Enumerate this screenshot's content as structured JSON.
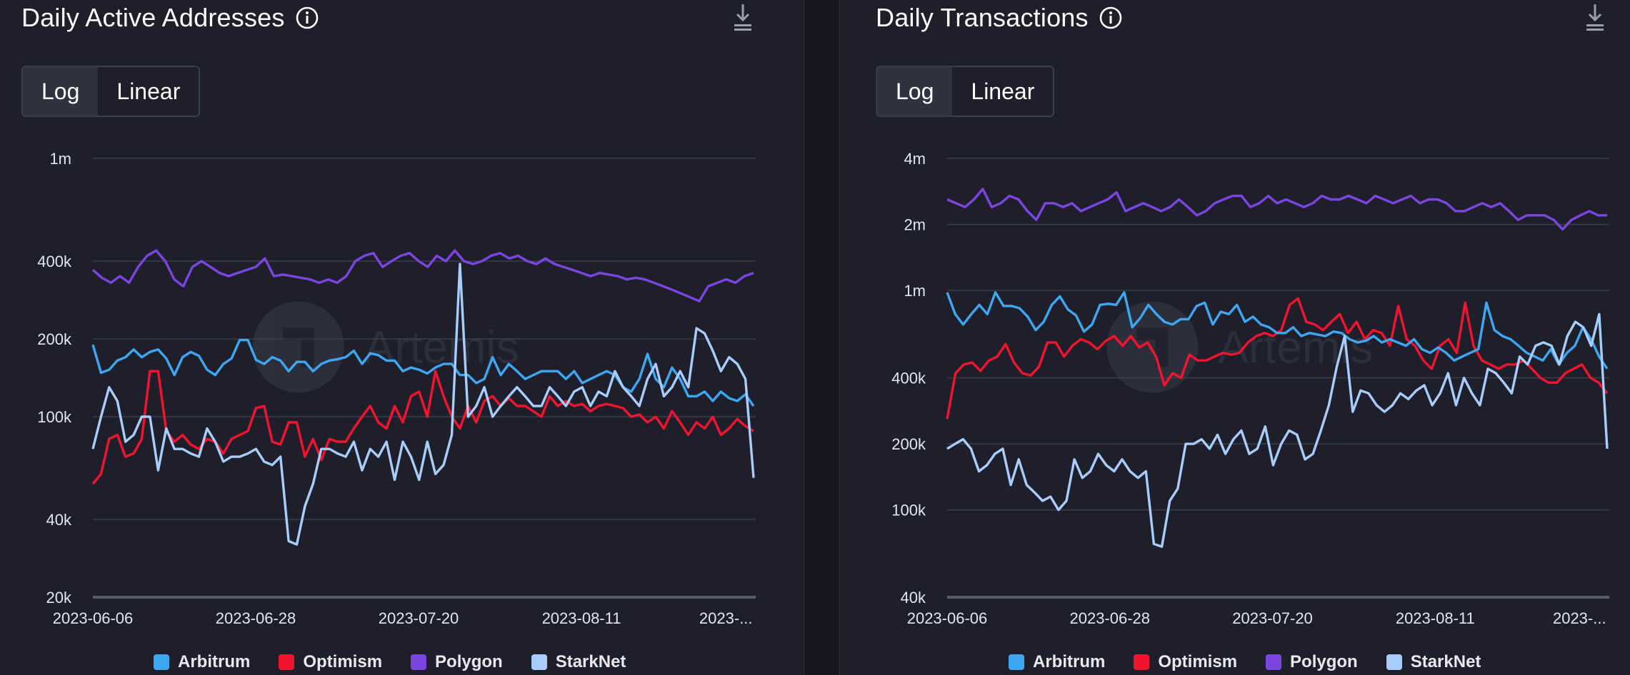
{
  "colors": {
    "Arbitrum": "#3ea7f2",
    "Optimism": "#f2142e",
    "Polygon": "#7b45e0",
    "StarkNet": "#a9cdfa",
    "grid": "#3b3d4a",
    "axis_text": "#e4e6ee"
  },
  "watermark": "Artemis",
  "toggle_labels": {
    "log": "Log",
    "linear": "Linear"
  },
  "legend": [
    "Arbitrum",
    "Optimism",
    "Polygon",
    "StarkNet"
  ],
  "chart_data": [
    {
      "type": "line",
      "title": "Daily Active Addresses",
      "scale": "log",
      "ylim": [
        20000,
        1000000
      ],
      "yticks": [
        20000,
        40000,
        100000,
        200000,
        400000,
        1000000
      ],
      "ytick_labels": [
        "20k",
        "40k",
        "100k",
        "200k",
        "400k",
        "1m"
      ],
      "x_start": "2023-06-06",
      "x_end": "2023-08-30",
      "xtick_labels": [
        "2023-06-06",
        "2023-06-28",
        "2023-07-20",
        "2023-08-11",
        "2023-..."
      ],
      "grid": true,
      "legend_position": "bottom-center",
      "series": [
        {
          "name": "Arbitrum",
          "values": [
            190000,
            148000,
            152000,
            165000,
            170000,
            182000,
            170000,
            178000,
            182000,
            168000,
            145000,
            170000,
            178000,
            172000,
            152000,
            145000,
            160000,
            168000,
            198000,
            198000,
            166000,
            160000,
            170000,
            165000,
            150000,
            163000,
            163000,
            150000,
            160000,
            165000,
            167000,
            170000,
            180000,
            160000,
            176000,
            173000,
            165000,
            165000,
            150000,
            155000,
            152000,
            147000,
            155000,
            160000,
            160000,
            145000,
            145000,
            135000,
            140000,
            170000,
            145000,
            160000,
            150000,
            140000,
            145000,
            150000,
            150000,
            150000,
            140000,
            150000,
            135000,
            140000,
            145000,
            150000,
            145000,
            130000,
            125000,
            140000,
            175000,
            140000,
            130000,
            155000,
            140000,
            120000,
            120000,
            125000,
            115000,
            125000,
            118000,
            115000,
            122000,
            110000
          ]
        },
        {
          "name": "Optimism",
          "values": [
            55000,
            60000,
            82000,
            85000,
            70000,
            72000,
            82000,
            150000,
            150000,
            88000,
            80000,
            85000,
            78000,
            75000,
            82000,
            80000,
            72000,
            82000,
            85000,
            88000,
            108000,
            110000,
            80000,
            78000,
            95000,
            95000,
            70000,
            82000,
            68000,
            82000,
            80000,
            80000,
            90000,
            100000,
            110000,
            95000,
            90000,
            110000,
            95000,
            120000,
            125000,
            100000,
            150000,
            120000,
            100000,
            90000,
            110000,
            95000,
            115000,
            120000,
            110000,
            118000,
            110000,
            110000,
            105000,
            100000,
            120000,
            110000,
            115000,
            110000,
            112000,
            105000,
            110000,
            112000,
            110000,
            108000,
            100000,
            102000,
            95000,
            100000,
            90000,
            105000,
            95000,
            85000,
            95000,
            90000,
            100000,
            85000,
            90000,
            98000,
            92000,
            88000
          ]
        },
        {
          "name": "Polygon",
          "values": [
            370000,
            345000,
            330000,
            350000,
            330000,
            380000,
            420000,
            440000,
            400000,
            340000,
            320000,
            380000,
            400000,
            380000,
            360000,
            350000,
            360000,
            370000,
            380000,
            410000,
            350000,
            355000,
            350000,
            345000,
            340000,
            330000,
            340000,
            330000,
            350000,
            400000,
            420000,
            430000,
            380000,
            400000,
            420000,
            430000,
            400000,
            380000,
            420000,
            400000,
            440000,
            400000,
            390000,
            400000,
            420000,
            430000,
            410000,
            420000,
            400000,
            390000,
            410000,
            390000,
            380000,
            370000,
            360000,
            350000,
            360000,
            355000,
            350000,
            340000,
            345000,
            340000,
            330000,
            320000,
            310000,
            300000,
            290000,
            280000,
            320000,
            330000,
            340000,
            330000,
            350000,
            360000
          ]
        },
        {
          "name": "StarkNet",
          "values": [
            75000,
            100000,
            130000,
            115000,
            80000,
            85000,
            100000,
            100000,
            62000,
            90000,
            75000,
            75000,
            72000,
            70000,
            90000,
            80000,
            67000,
            70000,
            70000,
            72000,
            75000,
            67000,
            65000,
            70000,
            33000,
            32000,
            45000,
            55000,
            75000,
            75000,
            72000,
            70000,
            80000,
            62000,
            75000,
            70000,
            80000,
            57000,
            80000,
            70000,
            57000,
            80000,
            60000,
            65000,
            85000,
            390000,
            100000,
            110000,
            130000,
            100000,
            110000,
            120000,
            130000,
            120000,
            110000,
            110000,
            130000,
            120000,
            110000,
            125000,
            130000,
            110000,
            125000,
            120000,
            150000,
            130000,
            120000,
            110000,
            140000,
            160000,
            120000,
            130000,
            150000,
            130000,
            220000,
            210000,
            180000,
            150000,
            170000,
            160000,
            140000,
            58000
          ]
        }
      ]
    },
    {
      "type": "line",
      "title": "Daily Transactions",
      "scale": "log",
      "ylim": [
        40000,
        4000000
      ],
      "yticks": [
        40000,
        100000,
        200000,
        400000,
        1000000,
        2000000,
        4000000
      ],
      "ytick_labels": [
        "40k",
        "100k",
        "200k",
        "400k",
        "1m",
        "2m",
        "4m"
      ],
      "x_start": "2023-06-06",
      "x_end": "2023-08-30",
      "xtick_labels": [
        "2023-06-06",
        "2023-06-28",
        "2023-07-20",
        "2023-08-11",
        "2023-..."
      ],
      "grid": true,
      "legend_position": "bottom-center",
      "series": [
        {
          "name": "Arbitrum",
          "values": [
            980000,
            780000,
            700000,
            780000,
            860000,
            780000,
            980000,
            850000,
            850000,
            830000,
            760000,
            660000,
            720000,
            860000,
            940000,
            820000,
            770000,
            650000,
            700000,
            860000,
            870000,
            860000,
            980000,
            680000,
            750000,
            860000,
            780000,
            720000,
            700000,
            740000,
            740000,
            850000,
            880000,
            700000,
            800000,
            780000,
            860000,
            720000,
            760000,
            700000,
            680000,
            640000,
            640000,
            680000,
            620000,
            640000,
            630000,
            620000,
            650000,
            640000,
            600000,
            580000,
            590000,
            620000,
            580000,
            600000,
            580000,
            560000,
            600000,
            540000,
            520000,
            550000,
            520000,
            480000,
            500000,
            520000,
            540000,
            880000,
            660000,
            620000,
            600000,
            560000,
            520000,
            500000,
            480000,
            540000,
            460000,
            520000,
            560000,
            680000,
            600000,
            500000,
            440000
          ]
        },
        {
          "name": "Optimism",
          "values": [
            260000,
            420000,
            460000,
            470000,
            430000,
            480000,
            500000,
            570000,
            470000,
            420000,
            410000,
            450000,
            580000,
            580000,
            500000,
            560000,
            600000,
            580000,
            540000,
            590000,
            620000,
            560000,
            620000,
            550000,
            580000,
            500000,
            370000,
            420000,
            400000,
            510000,
            480000,
            480000,
            500000,
            520000,
            510000,
            520000,
            580000,
            620000,
            640000,
            620000,
            660000,
            860000,
            920000,
            720000,
            700000,
            660000,
            720000,
            780000,
            640000,
            720000,
            600000,
            660000,
            640000,
            560000,
            850000,
            600000,
            560000,
            480000,
            440000,
            560000,
            600000,
            520000,
            880000,
            560000,
            480000,
            460000,
            440000,
            460000,
            460000,
            480000,
            440000,
            400000,
            380000,
            380000,
            420000,
            440000,
            460000,
            400000,
            380000,
            340000
          ]
        },
        {
          "name": "Polygon",
          "values": [
            2600000,
            2500000,
            2400000,
            2600000,
            2900000,
            2400000,
            2500000,
            2700000,
            2600000,
            2300000,
            2100000,
            2500000,
            2500000,
            2400000,
            2500000,
            2300000,
            2400000,
            2500000,
            2600000,
            2800000,
            2300000,
            2400000,
            2500000,
            2400000,
            2300000,
            2400000,
            2600000,
            2400000,
            2200000,
            2300000,
            2500000,
            2600000,
            2700000,
            2700000,
            2400000,
            2500000,
            2700000,
            2500000,
            2600000,
            2500000,
            2400000,
            2500000,
            2700000,
            2600000,
            2600000,
            2700000,
            2600000,
            2500000,
            2700000,
            2600000,
            2500000,
            2600000,
            2700000,
            2500000,
            2600000,
            2600000,
            2500000,
            2300000,
            2300000,
            2400000,
            2500000,
            2400000,
            2500000,
            2300000,
            2100000,
            2200000,
            2200000,
            2200000,
            2100000,
            1900000,
            2100000,
            2200000,
            2300000,
            2200000,
            2200000
          ]
        },
        {
          "name": "StarkNet",
          "values": [
            190000,
            200000,
            210000,
            190000,
            150000,
            160000,
            180000,
            190000,
            130000,
            170000,
            130000,
            120000,
            110000,
            115000,
            100000,
            110000,
            170000,
            140000,
            150000,
            180000,
            160000,
            150000,
            170000,
            150000,
            140000,
            150000,
            70000,
            68000,
            110000,
            125000,
            200000,
            200000,
            210000,
            190000,
            220000,
            180000,
            210000,
            230000,
            180000,
            190000,
            240000,
            160000,
            200000,
            230000,
            220000,
            170000,
            180000,
            230000,
            300000,
            450000,
            620000,
            280000,
            350000,
            340000,
            300000,
            280000,
            300000,
            340000,
            320000,
            350000,
            370000,
            300000,
            340000,
            420000,
            300000,
            400000,
            340000,
            300000,
            440000,
            420000,
            380000,
            340000,
            500000,
            460000,
            560000,
            580000,
            560000,
            460000,
            620000,
            720000,
            680000,
            560000,
            780000,
            190000
          ]
        }
      ]
    }
  ]
}
